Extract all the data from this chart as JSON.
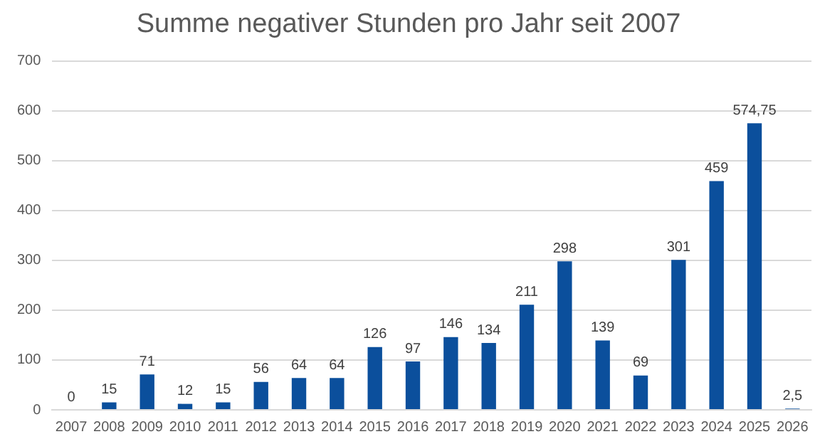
{
  "chart_data": {
    "type": "bar",
    "title": "Summe negativer Stunden pro Jahr seit 2007",
    "categories": [
      "2007",
      "2008",
      "2009",
      "2010",
      "2011",
      "2012",
      "2013",
      "2014",
      "2015",
      "2016",
      "2017",
      "2018",
      "2019",
      "2020",
      "2021",
      "2022",
      "2023",
      "2024",
      "2025",
      "2026"
    ],
    "values": [
      0,
      15,
      71,
      12,
      15,
      56,
      64,
      64,
      126,
      97,
      146,
      134,
      211,
      298,
      139,
      69,
      301,
      459,
      574.75,
      2.5
    ],
    "value_labels": [
      "0",
      "15",
      "71",
      "12",
      "15",
      "56",
      "64",
      "64",
      "126",
      "97",
      "146",
      "134",
      "211",
      "298",
      "139",
      "69",
      "301",
      "459",
      "574,75",
      "2,5"
    ],
    "color": "#0b4f9c",
    "ylim": [
      0,
      700
    ],
    "yticks": [
      0,
      100,
      200,
      300,
      400,
      500,
      600,
      700
    ],
    "grid": "y",
    "legend": false
  }
}
